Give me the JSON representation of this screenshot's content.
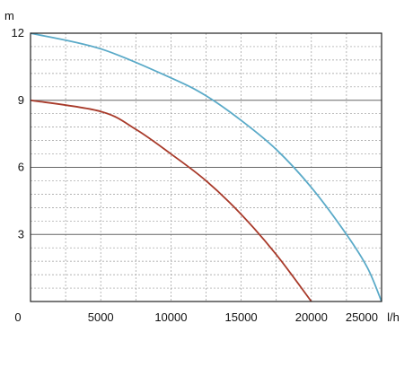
{
  "chart_data": {
    "type": "line",
    "title": "",
    "xlabel": "l/h",
    "ylabel": "m",
    "xlim": [
      0,
      25000
    ],
    "ylim": [
      0,
      12
    ],
    "x_ticks": [
      0,
      5000,
      10000,
      15000,
      20000,
      25000
    ],
    "x_tick_labels": [
      "0",
      "5000",
      "10000",
      "15000",
      "20000",
      "25000"
    ],
    "y_ticks": [
      0,
      3,
      6,
      9,
      12
    ],
    "y_tick_labels": [
      "0",
      "3",
      "6",
      "9",
      "12"
    ],
    "grid": true,
    "legend": "none",
    "series": [
      {
        "color": "#5aaac8",
        "x": [
          0,
          5000,
          10000,
          12500,
          15000,
          17500,
          20000,
          22500,
          24000,
          25000
        ],
        "y": [
          12,
          11.3,
          10,
          9.2,
          8.1,
          6.8,
          5.1,
          3.0,
          1.5,
          0
        ]
      },
      {
        "color": "#a83a2a",
        "x": [
          0,
          5000,
          7500,
          10000,
          12500,
          15000,
          17500,
          20000
        ],
        "y": [
          9,
          8.5,
          7.7,
          6.6,
          5.4,
          3.9,
          2.1,
          0
        ]
      }
    ]
  }
}
